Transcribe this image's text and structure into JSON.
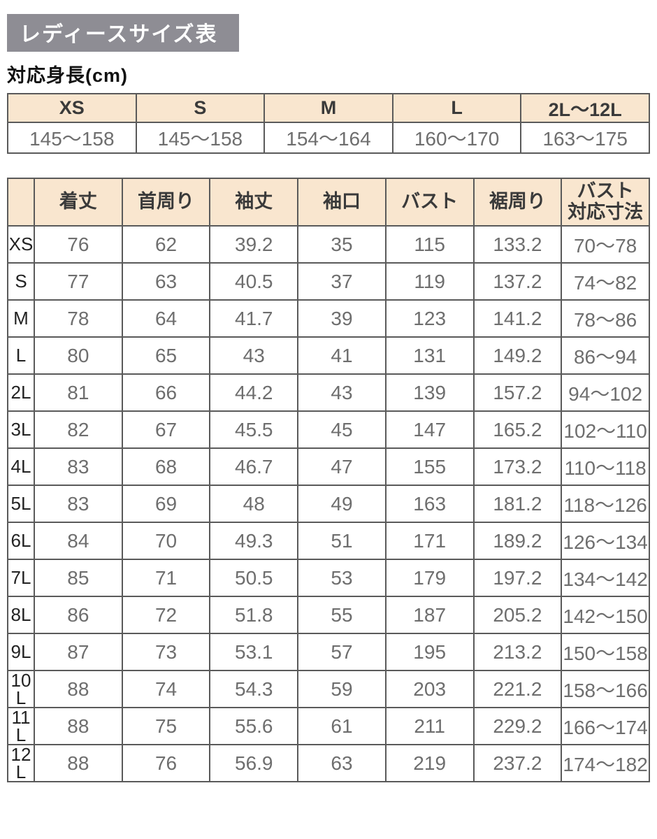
{
  "title": "レディースサイズ表",
  "height_section_label": "対応身長(cm)",
  "chart_data": [
    {
      "type": "table",
      "title": "対応身長(cm)",
      "columns": [
        "XS",
        "S",
        "M",
        "L",
        "2L〜12L"
      ],
      "values": [
        "145〜158",
        "145〜158",
        "154〜164",
        "160〜170",
        "163〜175"
      ]
    },
    {
      "type": "table",
      "columns": [
        "着丈",
        "首周り",
        "袖丈",
        "袖口",
        "バスト",
        "裾周り",
        "バスト\n対応寸法"
      ],
      "rows": [
        {
          "size": "XS",
          "values": [
            76,
            62,
            39.2,
            35,
            115,
            133.2,
            "70〜78"
          ]
        },
        {
          "size": "S",
          "values": [
            77,
            63,
            40.5,
            37,
            119,
            137.2,
            "74〜82"
          ]
        },
        {
          "size": "M",
          "values": [
            78,
            64,
            41.7,
            39,
            123,
            141.2,
            "78〜86"
          ]
        },
        {
          "size": "L",
          "values": [
            80,
            65,
            43,
            41,
            131,
            149.2,
            "86〜94"
          ]
        },
        {
          "size": "2L",
          "values": [
            81,
            66,
            44.2,
            43,
            139,
            157.2,
            "94〜102"
          ]
        },
        {
          "size": "3L",
          "values": [
            82,
            67,
            45.5,
            45,
            147,
            165.2,
            "102〜110"
          ]
        },
        {
          "size": "4L",
          "values": [
            83,
            68,
            46.7,
            47,
            155,
            173.2,
            "110〜118"
          ]
        },
        {
          "size": "5L",
          "values": [
            83,
            69,
            48,
            49,
            163,
            181.2,
            "118〜126"
          ]
        },
        {
          "size": "6L",
          "values": [
            84,
            70,
            49.3,
            51,
            171,
            189.2,
            "126〜134"
          ]
        },
        {
          "size": "7L",
          "values": [
            85,
            71,
            50.5,
            53,
            179,
            197.2,
            "134〜142"
          ]
        },
        {
          "size": "8L",
          "values": [
            86,
            72,
            51.8,
            55,
            187,
            205.2,
            "142〜150"
          ]
        },
        {
          "size": "9L",
          "values": [
            87,
            73,
            53.1,
            57,
            195,
            213.2,
            "150〜158"
          ]
        },
        {
          "size": "10L",
          "values": [
            88,
            74,
            54.3,
            59,
            203,
            221.2,
            "158〜166"
          ]
        },
        {
          "size": "11L",
          "values": [
            88,
            75,
            55.6,
            61,
            211,
            229.2,
            "166〜174"
          ]
        },
        {
          "size": "12L",
          "values": [
            88,
            76,
            56.9,
            63,
            219,
            237.2,
            "174〜182"
          ]
        }
      ]
    }
  ],
  "colors": {
    "title_bar_bg": "#8e8d94",
    "title_text": "#ffffff",
    "header_bg": "#f9e6cf",
    "border": "#5a5a5a",
    "value_text": "#6e6e6e",
    "header_text": "#3a3a3a"
  }
}
